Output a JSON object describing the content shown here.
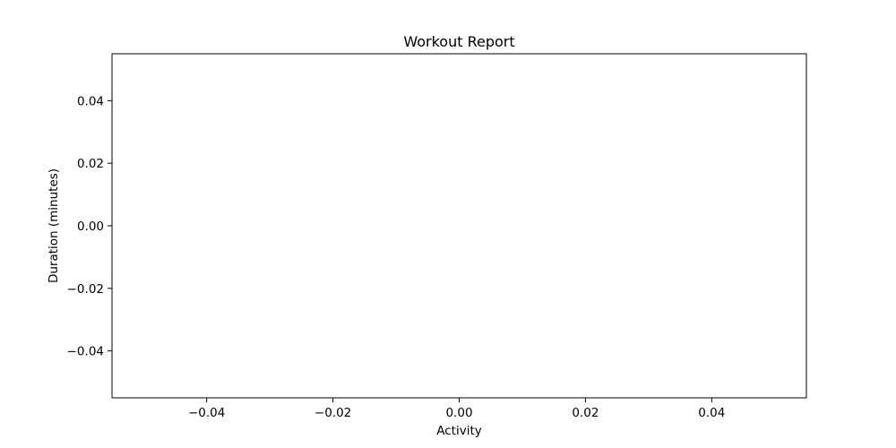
{
  "chart_data": {
    "type": "line",
    "title": "Workout Report",
    "xlabel": "Activity",
    "ylabel": "Duration (minutes)",
    "xlim": [
      -0.055,
      0.055
    ],
    "ylim": [
      -0.055,
      0.055
    ],
    "x_ticks": [
      -0.04,
      -0.02,
      0.0,
      0.02,
      0.04
    ],
    "x_tick_labels": [
      "−0.04",
      "−0.02",
      "0.00",
      "0.02",
      "0.04"
    ],
    "y_ticks": [
      -0.04,
      -0.02,
      0.0,
      0.02,
      0.04
    ],
    "y_tick_labels": [
      "−0.04",
      "−0.02",
      "0.00",
      "0.02",
      "0.04"
    ],
    "series": [],
    "grid": false,
    "colors": {
      "axis": "#000000",
      "background": "#ffffff"
    }
  }
}
